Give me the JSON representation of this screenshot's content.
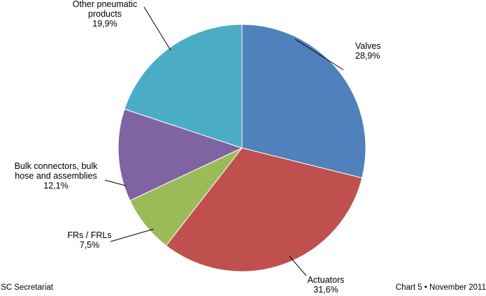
{
  "chart_data": {
    "type": "pie",
    "slices": [
      {
        "label_lines": [
          "Valves"
        ],
        "value": 28.9,
        "value_label": "28,9%",
        "color": "#4f81bd"
      },
      {
        "label_lines": [
          "Actuators"
        ],
        "value": 31.6,
        "value_label": "31,6%",
        "color": "#c0504d"
      },
      {
        "label_lines": [
          "FRs / FRLs"
        ],
        "value": 7.5,
        "value_label": "7,5%",
        "color": "#9bbb59"
      },
      {
        "label_lines": [
          "Bulk connectors, bulk",
          "hose and assemblies"
        ],
        "value": 12.1,
        "value_label": "12,1%",
        "color": "#8064a2"
      },
      {
        "label_lines": [
          "Other pneumatic",
          "products"
        ],
        "value": 19.9,
        "value_label": "19,9%",
        "color": "#4bacc6"
      }
    ],
    "start": "12 o'clock",
    "direction": "clockwise",
    "legend": "none"
  },
  "footer": {
    "left": "ISC Secretariat",
    "right": "Chart 5 • November 2011"
  }
}
